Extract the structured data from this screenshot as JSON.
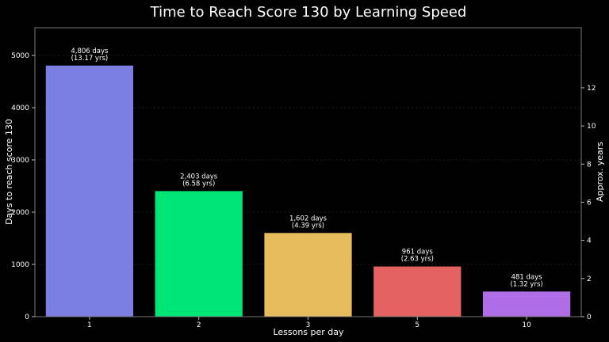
{
  "chart_data": {
    "type": "bar",
    "title": "Time to Reach Score 130 by Learning Speed",
    "xlabel": "Lessons per day",
    "ylabel": "Days to reach score 130",
    "y2label": "Approx. years",
    "categories": [
      "1",
      "2",
      "3",
      "5",
      "10"
    ],
    "values": [
      4806,
      2403,
      1602,
      961,
      481
    ],
    "value_labels": [
      [
        "4,806 days",
        "(13.17 yrs)"
      ],
      [
        "2,403 days",
        "(6.58 yrs)"
      ],
      [
        "1,602 days",
        "(4.39 yrs)"
      ],
      [
        "961 days",
        "(2.63 yrs)"
      ],
      [
        "481 days",
        "(1.32 yrs)"
      ]
    ],
    "colors": [
      "#7b7fe4",
      "#00e676",
      "#e5bb5c",
      "#e46262",
      "#b06ee6"
    ],
    "ylim": [
      0,
      5530
    ],
    "yticks": [
      0,
      1000,
      2000,
      3000,
      4000,
      5000
    ],
    "y2lim": [
      0,
      15.15
    ],
    "y2ticks": [
      0,
      2,
      4,
      6,
      8,
      10,
      12
    ],
    "grid": true
  }
}
